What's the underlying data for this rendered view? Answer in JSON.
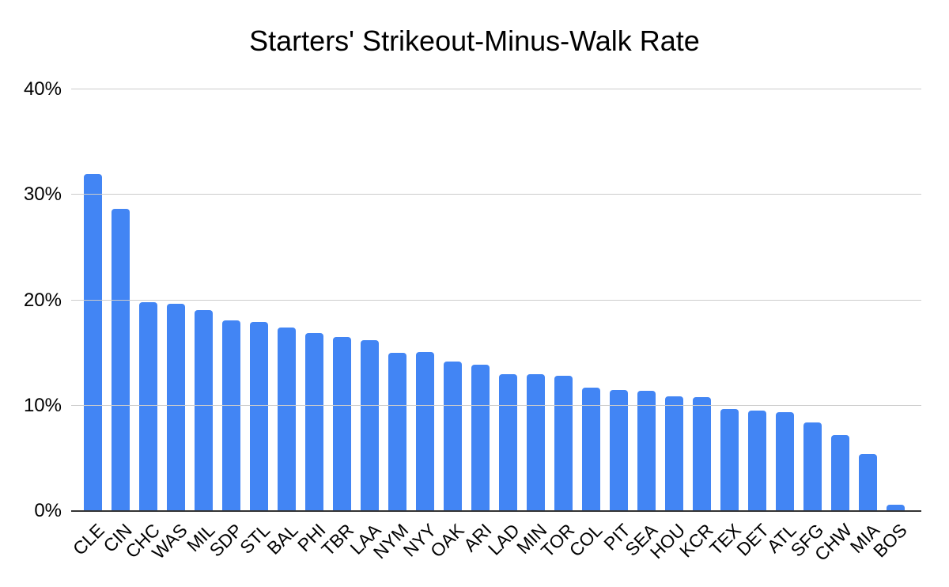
{
  "chart_data": {
    "type": "bar",
    "title": "Starters' Strikeout-Minus-Walk Rate",
    "categories": [
      "CLE",
      "CIN",
      "CHC",
      "WAS",
      "MIL",
      "SDP",
      "STL",
      "BAL",
      "PHI",
      "TBR",
      "LAA",
      "NYM",
      "NYY",
      "OAK",
      "ARI",
      "LAD",
      "MIN",
      "TOR",
      "COL",
      "PIT",
      "SEA",
      "HOU",
      "KCR",
      "TEX",
      "DET",
      "ATL",
      "SFG",
      "CHW",
      "MIA",
      "BOS"
    ],
    "values": [
      32.0,
      28.7,
      19.8,
      19.7,
      19.1,
      18.1,
      17.9,
      17.4,
      16.9,
      16.5,
      16.2,
      15.0,
      15.1,
      14.2,
      13.9,
      13.0,
      13.0,
      12.8,
      11.7,
      11.5,
      11.4,
      10.9,
      10.8,
      9.7,
      9.5,
      9.4,
      8.4,
      7.2,
      5.4,
      0.6
    ],
    "unit": "%",
    "xlabel": "",
    "ylabel": "",
    "y_ticks": [
      "0%",
      "10%",
      "20%",
      "30%",
      "40%"
    ],
    "ylim": [
      0,
      40
    ],
    "grid": true,
    "legend_position": "none",
    "bar_color": "#4285f4",
    "gridline_color": "#cccccc",
    "baseline_color": "#333333",
    "text_color": "#000000"
  }
}
